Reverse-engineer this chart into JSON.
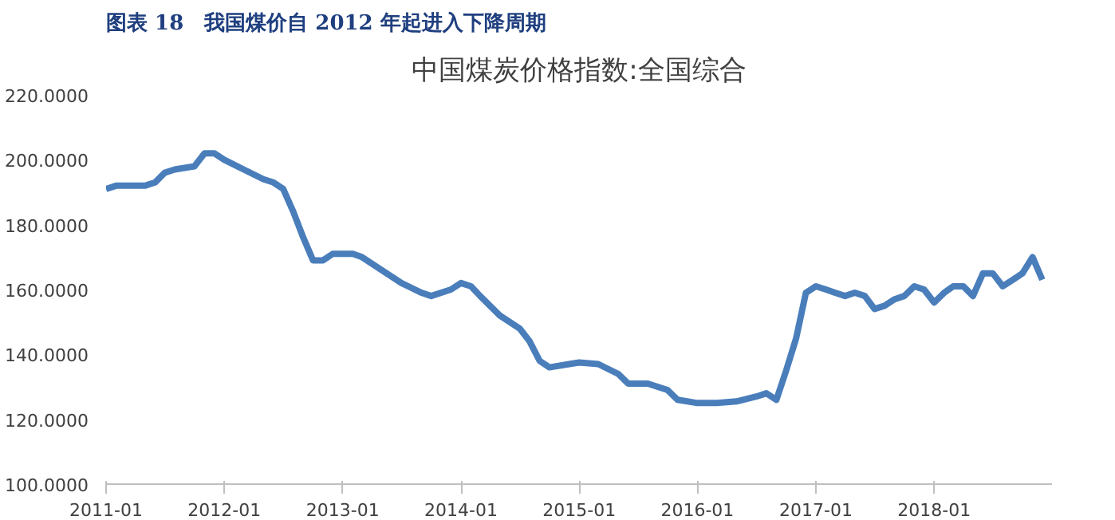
{
  "chart_data": {
    "type": "line",
    "title": "图表 18　我国煤价自 2012 年起进入下降周期",
    "subtitle": "中国煤炭价格指数:全国综合",
    "x": [
      "2011-01",
      "2011-02",
      "2011-05",
      "2011-06",
      "2011-07",
      "2011-08",
      "2011-10",
      "2011-11",
      "2011-12",
      "2012-01",
      "2012-03",
      "2012-05",
      "2012-06",
      "2012-07",
      "2012-08",
      "2012-09",
      "2012-10",
      "2012-11",
      "2012-12",
      "2013-02",
      "2013-03",
      "2013-05",
      "2013-07",
      "2013-09",
      "2013-10",
      "2013-12",
      "2014-01",
      "2014-02",
      "2014-03",
      "2014-05",
      "2014-07",
      "2014-08",
      "2014-09",
      "2014-10",
      "2014-12",
      "2015-01",
      "2015-03",
      "2015-05",
      "2015-06",
      "2015-08",
      "2015-10",
      "2015-11",
      "2016-01",
      "2016-03",
      "2016-05",
      "2016-07",
      "2016-08",
      "2016-09",
      "2016-10",
      "2016-11",
      "2016-12",
      "2017-01",
      "2017-02",
      "2017-03",
      "2017-04",
      "2017-05",
      "2017-06",
      "2017-07",
      "2017-08",
      "2017-09",
      "2017-10",
      "2017-11",
      "2017-12",
      "2018-01",
      "2018-02",
      "2018-03",
      "2018-04",
      "2018-05",
      "2018-06",
      "2018-07",
      "2018-08",
      "2018-09",
      "2018-10",
      "2018-11",
      "2018-12"
    ],
    "series": [
      {
        "color": "#4a7ebb",
        "values": [
          191,
          192,
          192,
          193,
          196,
          197,
          198,
          202,
          202,
          200,
          197,
          194,
          193,
          191,
          184,
          176,
          169,
          169,
          171,
          171,
          170,
          166,
          162,
          159,
          158,
          160,
          162,
          161,
          158,
          152,
          148,
          144,
          138,
          136,
          137,
          137.5,
          137,
          134,
          131,
          131,
          129,
          126,
          125,
          125,
          125.5,
          127,
          128,
          126,
          135,
          145,
          159,
          161,
          160,
          159,
          158,
          159,
          158,
          154,
          155,
          157,
          158,
          161,
          160,
          156,
          159,
          161,
          161,
          158,
          165,
          165,
          161,
          163,
          165,
          170,
          163
        ]
      }
    ],
    "xlim": [
      "2011-01",
      "2018-12-31"
    ],
    "xticks": [
      "2011-01",
      "2012-01",
      "2013-01",
      "2014-01",
      "2015-01",
      "2016-01",
      "2017-01",
      "2018-01"
    ],
    "ylim": [
      100,
      220
    ],
    "yticks": [
      {
        "value": 100,
        "label": "100.0000"
      },
      {
        "value": 120,
        "label": "120.0000"
      },
      {
        "value": 140,
        "label": "140.0000"
      },
      {
        "value": 160,
        "label": "160.0000"
      },
      {
        "value": 180,
        "label": "180.0000"
      },
      {
        "value": 200,
        "label": "200.0000"
      },
      {
        "value": 220,
        "label": "220.0000"
      }
    ],
    "grid": false,
    "line_style": "solid"
  }
}
